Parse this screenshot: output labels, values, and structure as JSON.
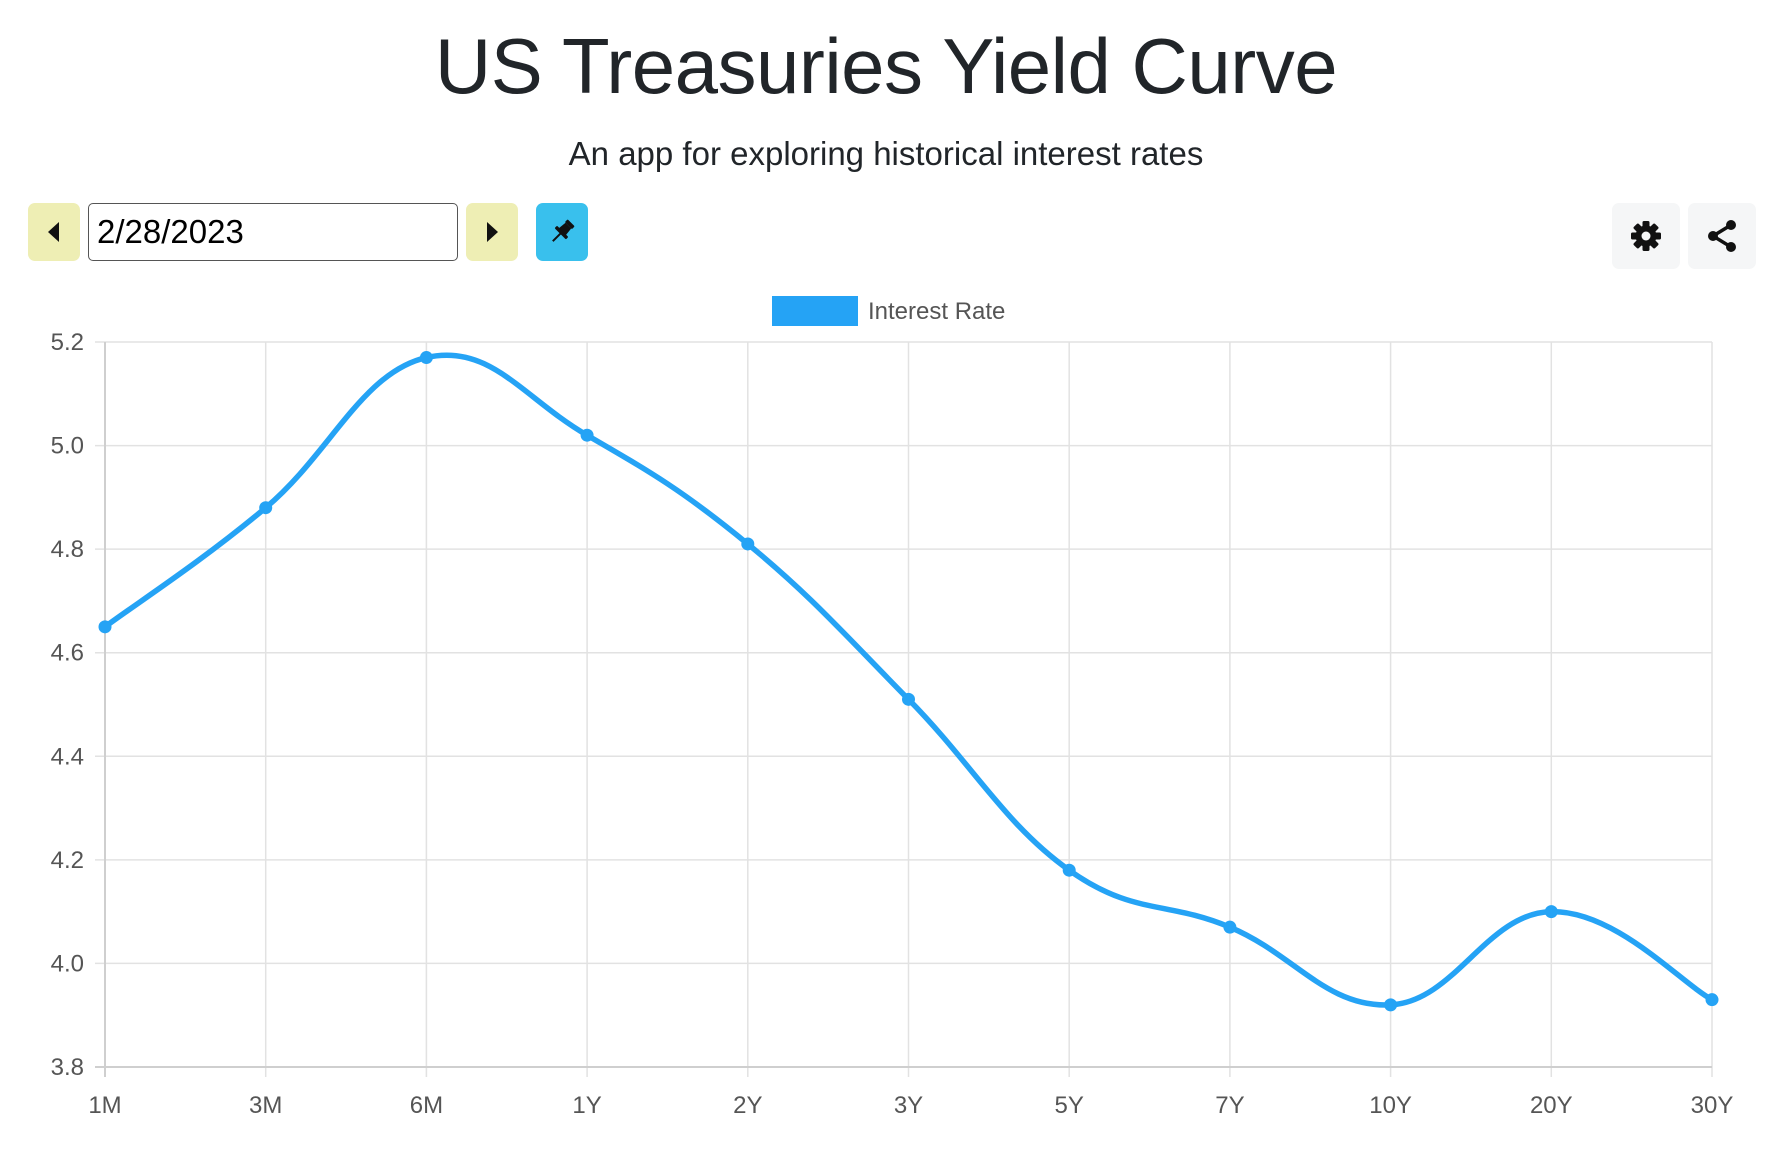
{
  "header": {
    "title": "US Treasuries Yield Curve",
    "subtitle": "An app for exploring historical interest rates"
  },
  "toolbar": {
    "date_value": "2/28/2023",
    "prev_icon": "caret-left-icon",
    "next_icon": "caret-right-icon",
    "pin_icon": "pin-icon",
    "settings_icon": "gear-icon",
    "share_icon": "share-icon"
  },
  "colors": {
    "accent": "#25a3f5",
    "nav_button": "#eeeeb4",
    "pin_button": "#39c0ed",
    "light_button": "#f5f6f7",
    "grid": "#e2e2e2",
    "axis_text": "#555555"
  },
  "chart_data": {
    "type": "line",
    "categories": [
      "1M",
      "3M",
      "6M",
      "1Y",
      "2Y",
      "3Y",
      "5Y",
      "7Y",
      "10Y",
      "20Y",
      "30Y"
    ],
    "series": [
      {
        "name": "Interest Rate",
        "values": [
          4.65,
          4.88,
          5.17,
          5.02,
          4.81,
          4.51,
          4.18,
          4.07,
          3.92,
          4.1,
          3.93
        ]
      }
    ],
    "title": "",
    "xlabel": "",
    "ylabel": "",
    "ylim": [
      3.8,
      5.2
    ],
    "yticks": [
      "5.2",
      "5.0",
      "4.8",
      "4.6",
      "4.4",
      "4.2",
      "4.0",
      "3.8"
    ],
    "ytick_values": [
      5.2,
      5.0,
      4.8,
      4.6,
      4.4,
      4.2,
      4.0,
      3.8
    ],
    "grid": true,
    "legend": "top-center",
    "smooth": true
  }
}
